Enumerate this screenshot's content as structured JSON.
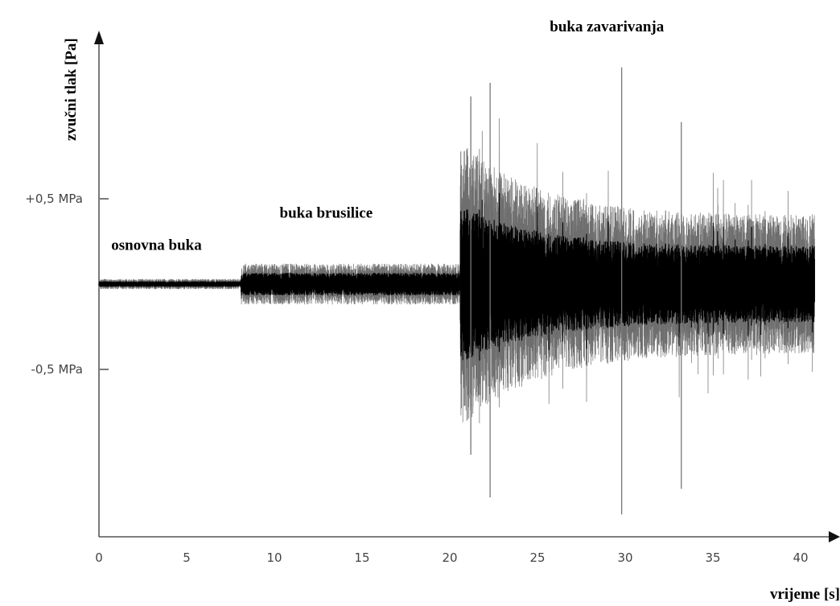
{
  "chart_data": {
    "type": "line",
    "ylabel": "zvučni tlak [Pa]",
    "xlabel": "vrijeme [s]",
    "x_ticks": [
      0,
      5,
      10,
      15,
      20,
      25,
      30,
      35,
      40
    ],
    "xlim": [
      0,
      41
    ],
    "y_ticks": [
      {
        "value": 0.5,
        "label": "+0,5 MPa"
      },
      {
        "value": -0.5,
        "label": "-0,5 MPa"
      }
    ],
    "ylim": [
      -1.46,
      1.48
    ],
    "annotations": [
      {
        "text": "osnovna buka",
        "x": 0.7,
        "y": 0.2
      },
      {
        "text": "buka brusilice",
        "x": 10.3,
        "y": 0.39
      },
      {
        "text": "buka zavarivanja",
        "x": 25.7,
        "y": 1.48
      }
    ],
    "segments": [
      {
        "name": "osnovna buka",
        "x_start": 0,
        "x_end": 8.1,
        "amplitude_approx": 0.03
      },
      {
        "name": "buka brusilice",
        "x_start": 8.1,
        "x_end": 20.6,
        "amplitude_approx": 0.12
      },
      {
        "name": "buka zavarivanja",
        "x_start": 20.6,
        "x_end": 40.8,
        "amplitude_approx": 0.4,
        "peak_approx": 1.2
      }
    ],
    "spikes": [
      {
        "x": 29.8,
        "min": -1.35,
        "max": 1.27
      },
      {
        "x": 33.2,
        "min": -1.2,
        "max": 0.95
      },
      {
        "x": 22.3,
        "min": -1.25,
        "max": 1.18
      },
      {
        "x": 21.2,
        "min": -1.0,
        "max": 1.1
      }
    ]
  },
  "colors": {
    "axis": "#333333",
    "signal": "#000000",
    "text": "#000000"
  }
}
